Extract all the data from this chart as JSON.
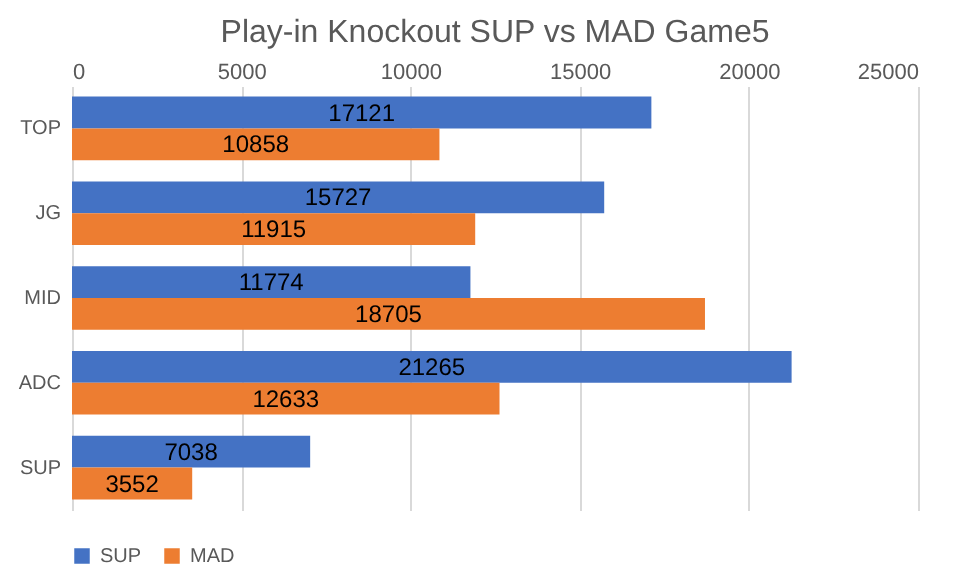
{
  "chart_data": {
    "type": "bar",
    "orientation": "horizontal",
    "title": "Play-in Knockout SUP vs MAD Game5",
    "categories": [
      "TOP",
      "JG",
      "MID",
      "ADC",
      "SUP"
    ],
    "series": [
      {
        "name": "SUP",
        "color": "#4472c4",
        "values": [
          17121,
          15727,
          11774,
          21265,
          7038
        ]
      },
      {
        "name": "MAD",
        "color": "#ed7d31",
        "values": [
          10858,
          11915,
          18705,
          12633,
          3552
        ]
      }
    ],
    "xlim": [
      0,
      25000
    ],
    "xticks": [
      0,
      5000,
      10000,
      15000,
      20000,
      25000
    ],
    "grid": "x",
    "legend": "bottom",
    "data_labels": true
  }
}
